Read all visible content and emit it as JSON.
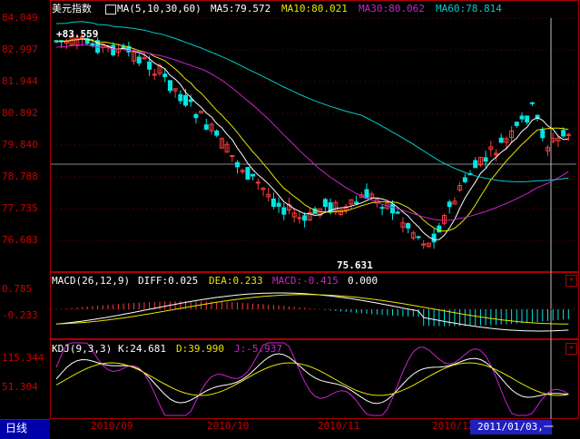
{
  "main_panel": {
    "title": "美元指数",
    "ma_label": "MA(5,10,30,60)",
    "ma5": "MA5:79.572",
    "ma10": "MA10:80.021",
    "ma30": "MA30:80.062",
    "ma60": "MA60:78.814",
    "high_annotation": "+83.559",
    "low_annotation": "75.631",
    "y_ticks": [
      "84.049",
      "82.997",
      "81.944",
      "80.892",
      "79.840",
      "78.788",
      "77.735",
      "76.683"
    ]
  },
  "macd_panel": {
    "label": "MACD(26,12,9)",
    "diff": "DIFF:0.025",
    "dea": "DEA:0.233",
    "macd": "MACD:-0.415",
    "zero": "0.000",
    "y_ticks": [
      "0.785",
      "-0.233"
    ]
  },
  "kdj_panel": {
    "label": "KDJ(9,3,3)",
    "k": "K:24.681",
    "d": "D:39.990",
    "j": "J:-5.937",
    "y_ticks": [
      "115.344",
      "51.304"
    ]
  },
  "bottom_bar": {
    "period_tab": "日线",
    "x_ticks": [
      "2010/09",
      "2010/10",
      "2010/11",
      "2010/12"
    ],
    "cursor_date": "2011/01/03,一"
  },
  "colors": {
    "up": "#ff3b3b",
    "down": "#00e5e5",
    "ma5": "#ffffff",
    "ma10": "#e6e600",
    "ma30": "#cc22cc",
    "ma60": "#00cccc",
    "axis": "#cc0000",
    "cursor_date_bg": "#2020c0"
  },
  "icons": [
    "chart-type-icon",
    "panel-expand-icon"
  ]
}
